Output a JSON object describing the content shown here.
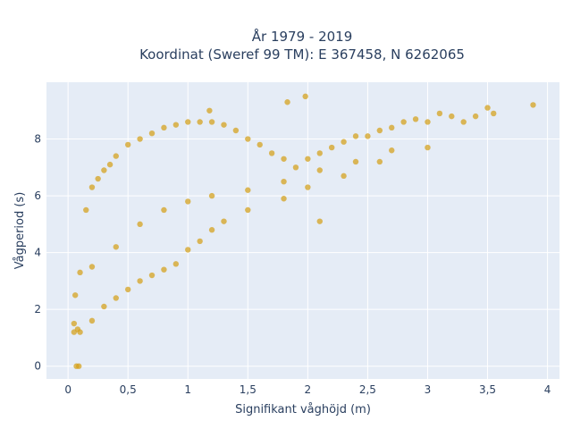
{
  "chart_data": {
    "type": "scatter",
    "title_line1": "År 1979 - 2019",
    "title_line2": "Koordinat (Sweref 99 TM): E 367458, N 6262065",
    "xlabel": "Signifikant våghöjd (m)",
    "ylabel": "Vågperiod (s)",
    "xlim": [
      -0.18,
      4.1
    ],
    "ylim": [
      -0.45,
      10.0
    ],
    "x_ticks": [
      0,
      0.5,
      1,
      1.5,
      2,
      2.5,
      3,
      3.5,
      4
    ],
    "x_tick_labels": [
      "0",
      "0,5",
      "1",
      "1,5",
      "2",
      "2,5",
      "3",
      "3,5",
      "4"
    ],
    "y_ticks": [
      0,
      2,
      4,
      6,
      8
    ],
    "y_tick_labels": [
      "0",
      "2",
      "4",
      "6",
      "8"
    ],
    "grid": true,
    "colors": {
      "marker": "#d4a017",
      "plot_bg": "#e5ecf6",
      "grid": "#ffffff"
    },
    "series": [
      {
        "x": [
          0.05,
          0.07,
          0.09,
          0.1,
          0.15,
          0.2,
          0.25,
          0.3,
          0.35,
          0.4,
          0.5,
          0.6,
          0.7,
          0.8,
          0.9,
          1.0,
          1.1,
          1.2,
          1.3,
          1.4,
          1.5,
          1.6,
          1.7,
          1.8,
          1.9,
          2.0,
          2.1,
          2.2,
          2.3,
          2.4,
          2.5,
          2.6,
          2.7,
          2.8,
          2.9,
          3.0,
          3.1,
          3.2,
          3.3,
          3.4,
          3.5,
          3.55,
          3.88,
          0.05,
          0.08,
          0.1,
          0.2,
          0.3,
          0.4,
          0.5,
          0.6,
          0.7,
          0.8,
          0.9,
          1.0,
          1.1,
          1.2,
          1.3,
          1.5,
          1.8,
          2.0,
          2.3,
          2.6,
          3.0,
          0.06,
          0.2,
          0.4,
          0.6,
          0.8,
          1.0,
          1.2,
          1.5,
          1.8,
          2.1,
          2.4,
          2.7,
          1.18,
          1.83,
          1.98,
          2.1
        ],
        "y": [
          1.2,
          0.0,
          0.0,
          3.3,
          5.5,
          6.3,
          6.6,
          6.9,
          7.1,
          7.4,
          7.8,
          8.0,
          8.2,
          8.4,
          8.5,
          8.6,
          8.6,
          8.6,
          8.5,
          8.3,
          8.0,
          7.8,
          7.5,
          7.3,
          7.0,
          7.3,
          7.5,
          7.7,
          7.9,
          8.1,
          8.1,
          8.3,
          8.4,
          8.6,
          8.7,
          8.6,
          8.9,
          8.8,
          8.6,
          8.8,
          9.1,
          8.9,
          9.2,
          1.5,
          1.3,
          1.2,
          1.6,
          2.1,
          2.4,
          2.7,
          3.0,
          3.2,
          3.4,
          3.6,
          4.1,
          4.4,
          4.8,
          5.1,
          5.5,
          5.9,
          6.3,
          6.7,
          7.2,
          7.7,
          2.5,
          3.5,
          4.2,
          5.0,
          5.5,
          5.8,
          6.0,
          6.2,
          6.5,
          6.9,
          7.2,
          7.6,
          9.0,
          9.3,
          9.5,
          5.1
        ]
      }
    ]
  }
}
